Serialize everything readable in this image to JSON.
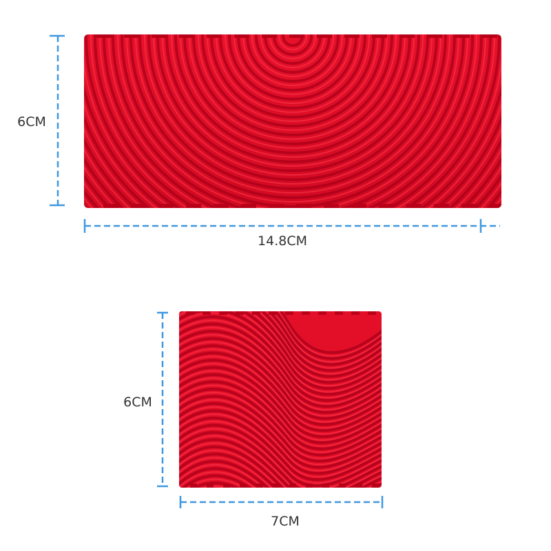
{
  "products": [
    {
      "height_label": "6CM",
      "width_label": "14.8CM"
    },
    {
      "height_label": "6CM",
      "width_label": "7CM"
    }
  ]
}
